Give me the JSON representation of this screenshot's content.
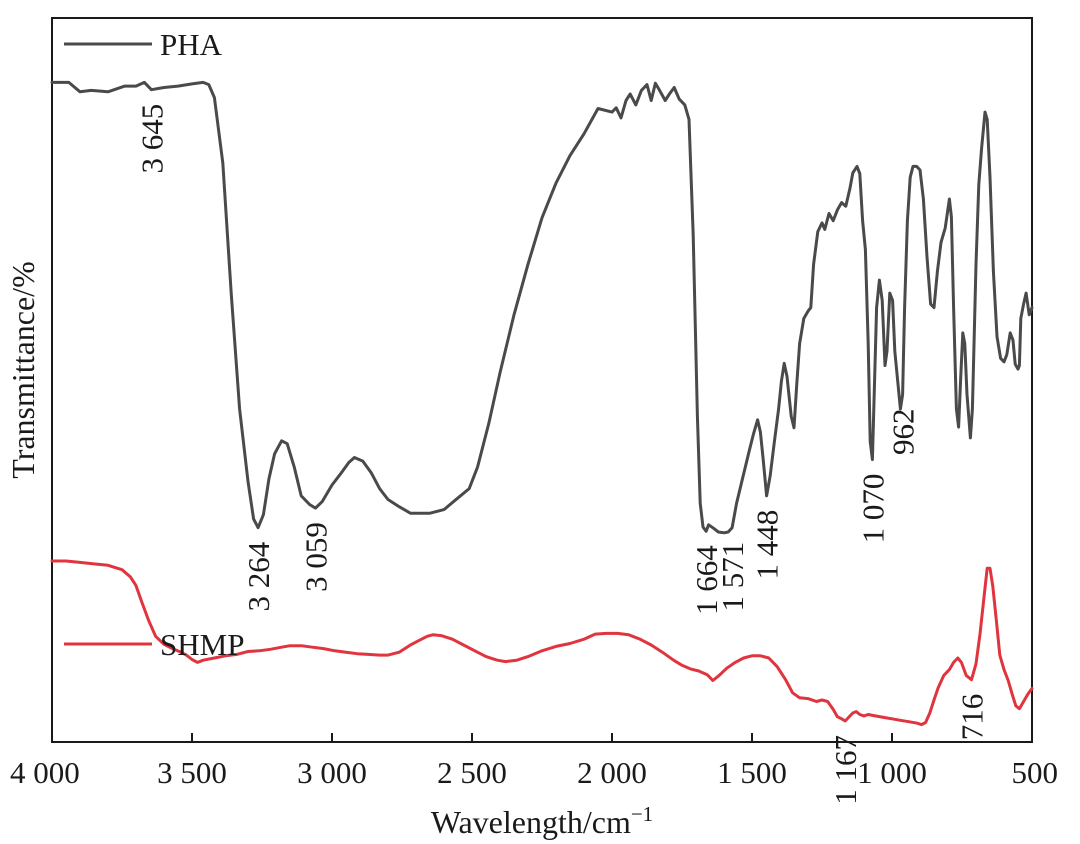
{
  "chart_data": {
    "type": "line",
    "title": "",
    "xlabel": "Wavelength/cm",
    "xlabel_sup": "−1",
    "ylabel": "Transmittance/%",
    "xlim": [
      4000,
      500
    ],
    "ylim": [
      0,
      100
    ],
    "x_ticks": [
      4000,
      3500,
      3000,
      2500,
      2000,
      1500,
      1000,
      500
    ],
    "x_tick_labels": [
      "4 000",
      "3 500",
      "3 000",
      "2 500",
      "2 000",
      "1 500",
      "1 000",
      "500"
    ],
    "colors": {
      "PHA": "#4a4a4a",
      "SHMP": "#e0343e"
    },
    "series": [
      {
        "name": "PHA",
        "points": [
          [
            4000,
            91.1
          ],
          [
            3940,
            91.1
          ],
          [
            3900,
            89.8
          ],
          [
            3860,
            90.0
          ],
          [
            3800,
            89.8
          ],
          [
            3740,
            90.6
          ],
          [
            3700,
            90.6
          ],
          [
            3670,
            91.1
          ],
          [
            3645,
            90.1
          ],
          [
            3600,
            90.4
          ],
          [
            3550,
            90.6
          ],
          [
            3500,
            90.9
          ],
          [
            3460,
            91.1
          ],
          [
            3440,
            90.8
          ],
          [
            3420,
            89.0
          ],
          [
            3390,
            80.0
          ],
          [
            3360,
            62.0
          ],
          [
            3330,
            46.0
          ],
          [
            3300,
            36.0
          ],
          [
            3280,
            30.8
          ],
          [
            3264,
            29.6
          ],
          [
            3245,
            31.4
          ],
          [
            3225,
            36.4
          ],
          [
            3205,
            39.8
          ],
          [
            3180,
            41.6
          ],
          [
            3160,
            41.2
          ],
          [
            3135,
            38.0
          ],
          [
            3110,
            34.0
          ],
          [
            3080,
            32.8
          ],
          [
            3059,
            32.3
          ],
          [
            3035,
            33.2
          ],
          [
            3000,
            35.5
          ],
          [
            2970,
            37.0
          ],
          [
            2940,
            38.6
          ],
          [
            2920,
            39.3
          ],
          [
            2890,
            38.8
          ],
          [
            2860,
            37.2
          ],
          [
            2830,
            35.0
          ],
          [
            2800,
            33.5
          ],
          [
            2760,
            32.5
          ],
          [
            2720,
            31.6
          ],
          [
            2650,
            31.6
          ],
          [
            2600,
            32.1
          ],
          [
            2560,
            33.4
          ],
          [
            2510,
            35.0
          ],
          [
            2480,
            38.0
          ],
          [
            2440,
            44.0
          ],
          [
            2400,
            51.0
          ],
          [
            2350,
            59.0
          ],
          [
            2300,
            66.0
          ],
          [
            2250,
            72.4
          ],
          [
            2200,
            77.2
          ],
          [
            2150,
            81.0
          ],
          [
            2100,
            84.0
          ],
          [
            2050,
            87.5
          ],
          [
            2000,
            87.0
          ],
          [
            1985,
            87.6
          ],
          [
            1968,
            86.2
          ],
          [
            1950,
            88.6
          ],
          [
            1935,
            89.5
          ],
          [
            1915,
            88.0
          ],
          [
            1895,
            90.0
          ],
          [
            1875,
            90.8
          ],
          [
            1860,
            88.6
          ],
          [
            1845,
            91.0
          ],
          [
            1830,
            90.0
          ],
          [
            1810,
            88.6
          ],
          [
            1795,
            89.5
          ],
          [
            1778,
            90.4
          ],
          [
            1760,
            88.8
          ],
          [
            1740,
            88.0
          ],
          [
            1725,
            86.0
          ],
          [
            1710,
            70.0
          ],
          [
            1695,
            45.0
          ],
          [
            1685,
            33.0
          ],
          [
            1675,
            29.7
          ],
          [
            1664,
            29.1
          ],
          [
            1655,
            30.0
          ],
          [
            1640,
            29.6
          ],
          [
            1620,
            29.0
          ],
          [
            1600,
            28.9
          ],
          [
            1585,
            29.0
          ],
          [
            1571,
            29.6
          ],
          [
            1555,
            33.0
          ],
          [
            1530,
            37.0
          ],
          [
            1510,
            40.2
          ],
          [
            1495,
            42.5
          ],
          [
            1480,
            44.5
          ],
          [
            1470,
            42.8
          ],
          [
            1460,
            39.0
          ],
          [
            1448,
            34.0
          ],
          [
            1435,
            36.8
          ],
          [
            1420,
            41.5
          ],
          [
            1405,
            46.0
          ],
          [
            1395,
            49.8
          ],
          [
            1385,
            52.3
          ],
          [
            1375,
            50.5
          ],
          [
            1360,
            45.0
          ],
          [
            1350,
            43.4
          ],
          [
            1340,
            49.5
          ],
          [
            1330,
            55.0
          ],
          [
            1315,
            58.5
          ],
          [
            1300,
            59.5
          ],
          [
            1290,
            60.0
          ],
          [
            1280,
            66.0
          ],
          [
            1265,
            70.5
          ],
          [
            1250,
            71.7
          ],
          [
            1240,
            70.8
          ],
          [
            1225,
            73.0
          ],
          [
            1210,
            72.0
          ],
          [
            1195,
            73.5
          ],
          [
            1180,
            74.5
          ],
          [
            1165,
            74.0
          ],
          [
            1150,
            76.5
          ],
          [
            1140,
            78.6
          ],
          [
            1125,
            79.5
          ],
          [
            1115,
            78.5
          ],
          [
            1105,
            72.0
          ],
          [
            1095,
            68.0
          ],
          [
            1085,
            55.0
          ],
          [
            1078,
            41.5
          ],
          [
            1070,
            39.0
          ],
          [
            1062,
            50.0
          ],
          [
            1055,
            60.0
          ],
          [
            1045,
            63.8
          ],
          [
            1035,
            61.0
          ],
          [
            1025,
            52.0
          ],
          [
            1018,
            54.0
          ],
          [
            1008,
            62.0
          ],
          [
            998,
            61.0
          ],
          [
            990,
            54.0
          ],
          [
            980,
            50.0
          ],
          [
            970,
            46.0
          ],
          [
            962,
            48.0
          ],
          [
            955,
            60.0
          ],
          [
            945,
            72.0
          ],
          [
            935,
            78.0
          ],
          [
            925,
            79.5
          ],
          [
            912,
            79.5
          ],
          [
            900,
            79.0
          ],
          [
            888,
            75.0
          ],
          [
            875,
            67.0
          ],
          [
            862,
            60.5
          ],
          [
            850,
            60.0
          ],
          [
            838,
            65.0
          ],
          [
            825,
            69.0
          ],
          [
            810,
            71.0
          ],
          [
            795,
            75.0
          ],
          [
            788,
            72.5
          ],
          [
            780,
            60.0
          ],
          [
            770,
            46.0
          ],
          [
            762,
            43.5
          ],
          [
            755,
            50.0
          ],
          [
            747,
            56.5
          ],
          [
            740,
            55.0
          ],
          [
            732,
            48.0
          ],
          [
            720,
            42.0
          ],
          [
            713,
            46.0
          ],
          [
            700,
            66.0
          ],
          [
            690,
            77.0
          ],
          [
            680,
            82.0
          ],
          [
            668,
            87.0
          ],
          [
            660,
            86.0
          ],
          [
            650,
            78.0
          ],
          [
            638,
            65.0
          ],
          [
            625,
            56.0
          ],
          [
            612,
            53.0
          ],
          [
            600,
            52.5
          ],
          [
            590,
            53.5
          ],
          [
            578,
            56.5
          ],
          [
            568,
            55.5
          ],
          [
            560,
            52.2
          ],
          [
            550,
            51.5
          ],
          [
            545,
            52.0
          ],
          [
            540,
            58.5
          ],
          [
            530,
            60.5
          ],
          [
            521,
            62.0
          ],
          [
            510,
            59.0
          ],
          [
            500,
            60.0
          ]
        ]
      },
      {
        "name": "SHMP",
        "points": [
          [
            4000,
            25.0
          ],
          [
            3950,
            25.0
          ],
          [
            3900,
            24.8
          ],
          [
            3850,
            24.6
          ],
          [
            3800,
            24.4
          ],
          [
            3750,
            23.8
          ],
          [
            3720,
            22.8
          ],
          [
            3700,
            21.6
          ],
          [
            3680,
            19.4
          ],
          [
            3655,
            16.8
          ],
          [
            3630,
            14.6
          ],
          [
            3600,
            13.5
          ],
          [
            3570,
            12.9
          ],
          [
            3545,
            12.5
          ],
          [
            3520,
            12.0
          ],
          [
            3500,
            11.4
          ],
          [
            3480,
            11.0
          ],
          [
            3460,
            11.3
          ],
          [
            3420,
            11.6
          ],
          [
            3380,
            11.9
          ],
          [
            3340,
            12.1
          ],
          [
            3300,
            12.5
          ],
          [
            3260,
            12.6
          ],
          [
            3220,
            12.8
          ],
          [
            3180,
            13.1
          ],
          [
            3150,
            13.3
          ],
          [
            3110,
            13.3
          ],
          [
            3070,
            13.1
          ],
          [
            3030,
            12.9
          ],
          [
            2990,
            12.6
          ],
          [
            2950,
            12.4
          ],
          [
            2910,
            12.2
          ],
          [
            2870,
            12.1
          ],
          [
            2830,
            12.0
          ],
          [
            2800,
            12.0
          ],
          [
            2760,
            12.4
          ],
          [
            2720,
            13.4
          ],
          [
            2690,
            14.0
          ],
          [
            2660,
            14.6
          ],
          [
            2640,
            14.8
          ],
          [
            2610,
            14.7
          ],
          [
            2570,
            14.2
          ],
          [
            2530,
            13.4
          ],
          [
            2490,
            12.6
          ],
          [
            2450,
            11.8
          ],
          [
            2410,
            11.3
          ],
          [
            2380,
            11.1
          ],
          [
            2340,
            11.3
          ],
          [
            2300,
            11.8
          ],
          [
            2250,
            12.6
          ],
          [
            2200,
            13.2
          ],
          [
            2150,
            13.6
          ],
          [
            2100,
            14.2
          ],
          [
            2060,
            14.9
          ],
          [
            2020,
            15.0
          ],
          [
            1980,
            15.0
          ],
          [
            1940,
            14.8
          ],
          [
            1900,
            14.2
          ],
          [
            1860,
            13.4
          ],
          [
            1820,
            12.4
          ],
          [
            1780,
            11.3
          ],
          [
            1750,
            10.6
          ],
          [
            1720,
            10.1
          ],
          [
            1690,
            9.8
          ],
          [
            1660,
            9.3
          ],
          [
            1640,
            8.5
          ],
          [
            1620,
            9.1
          ],
          [
            1590,
            10.2
          ],
          [
            1560,
            11.0
          ],
          [
            1530,
            11.6
          ],
          [
            1500,
            11.9
          ],
          [
            1470,
            11.9
          ],
          [
            1440,
            11.6
          ],
          [
            1410,
            10.4
          ],
          [
            1380,
            8.6
          ],
          [
            1355,
            6.8
          ],
          [
            1330,
            6.1
          ],
          [
            1300,
            6.0
          ],
          [
            1270,
            5.6
          ],
          [
            1250,
            5.8
          ],
          [
            1230,
            5.6
          ],
          [
            1210,
            4.5
          ],
          [
            1195,
            3.5
          ],
          [
            1180,
            3.2
          ],
          [
            1167,
            2.9
          ],
          [
            1155,
            3.4
          ],
          [
            1140,
            4.0
          ],
          [
            1128,
            4.2
          ],
          [
            1115,
            3.8
          ],
          [
            1100,
            3.6
          ],
          [
            1085,
            3.8
          ],
          [
            1060,
            3.6
          ],
          [
            1030,
            3.4
          ],
          [
            1000,
            3.2
          ],
          [
            970,
            3.0
          ],
          [
            940,
            2.8
          ],
          [
            910,
            2.6
          ],
          [
            895,
            2.4
          ],
          [
            880,
            2.7
          ],
          [
            865,
            4.0
          ],
          [
            850,
            5.8
          ],
          [
            835,
            7.5
          ],
          [
            815,
            9.2
          ],
          [
            795,
            10.0
          ],
          [
            780,
            11.0
          ],
          [
            765,
            11.6
          ],
          [
            752,
            11.0
          ],
          [
            735,
            9.2
          ],
          [
            716,
            8.6
          ],
          [
            700,
            10.8
          ],
          [
            686,
            14.8
          ],
          [
            670,
            20.5
          ],
          [
            660,
            24.0
          ],
          [
            650,
            24.0
          ],
          [
            640,
            21.5
          ],
          [
            628,
            17.0
          ],
          [
            615,
            12.0
          ],
          [
            600,
            10.0
          ],
          [
            585,
            8.5
          ],
          [
            570,
            6.5
          ],
          [
            558,
            5.0
          ],
          [
            545,
            4.6
          ],
          [
            530,
            5.6
          ],
          [
            515,
            6.6
          ],
          [
            500,
            7.4
          ]
        ]
      }
    ],
    "legend": [
      {
        "name": "PHA",
        "placement": "top-left"
      },
      {
        "name": "SHMP",
        "placement": "bottom-left"
      }
    ],
    "annotations": [
      {
        "series": "PHA",
        "x": 3645,
        "text": "3 645"
      },
      {
        "series": "PHA",
        "x": 3264,
        "text": "3 264"
      },
      {
        "series": "PHA",
        "x": 3059,
        "text": "3 059"
      },
      {
        "series": "PHA",
        "x": 1664,
        "text": "1 664"
      },
      {
        "series": "PHA",
        "x": 1571,
        "text": "1 571"
      },
      {
        "series": "PHA",
        "x": 1448,
        "text": "1 448"
      },
      {
        "series": "PHA",
        "x": 1070,
        "text": "1 070"
      },
      {
        "series": "PHA",
        "x": 962,
        "text": "962"
      },
      {
        "series": "SHMP",
        "x": 1167,
        "text": "1 167"
      },
      {
        "series": "SHMP",
        "x": 716,
        "text": "716"
      }
    ]
  }
}
